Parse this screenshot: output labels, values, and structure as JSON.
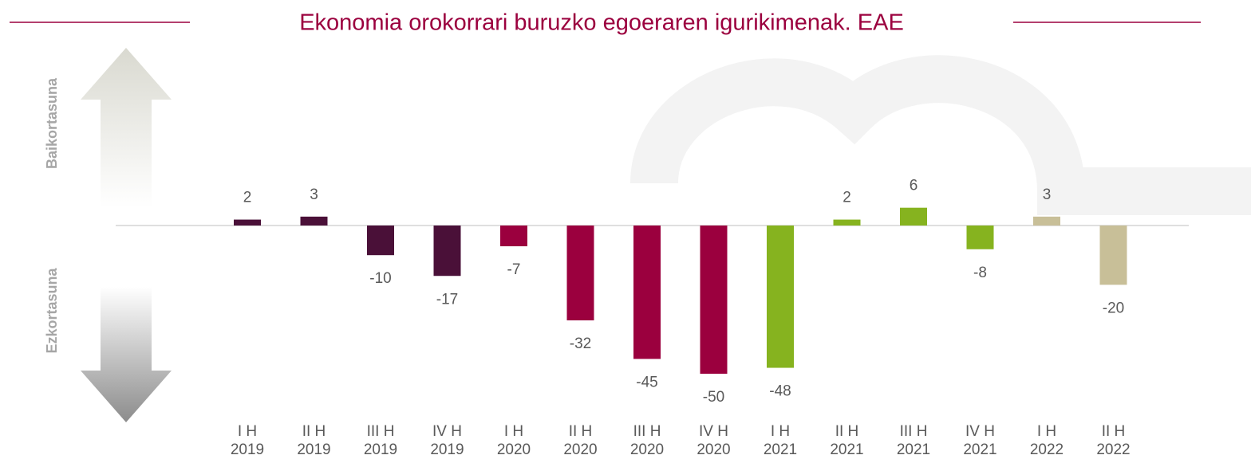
{
  "chart_data": {
    "type": "bar",
    "title": "Ekonomia orokorrari buruzko egoeraren igurikimenak. EAE",
    "annotations": [
      "Baikortasuna",
      "Ezkortasuna"
    ],
    "categories": [
      [
        "I H",
        "2019"
      ],
      [
        "II H",
        "2019"
      ],
      [
        "III H",
        "2019"
      ],
      [
        "IV H",
        "2019"
      ],
      [
        "I H",
        "2020"
      ],
      [
        "II H",
        "2020"
      ],
      [
        "III H",
        "2020"
      ],
      [
        "IV H",
        "2020"
      ],
      [
        "I H",
        "2021"
      ],
      [
        "II H",
        "2021"
      ],
      [
        "III H",
        "2021"
      ],
      [
        "IV H",
        "2021"
      ],
      [
        "I H",
        "2022"
      ],
      [
        "II H",
        "2022"
      ]
    ],
    "values": [
      2,
      3,
      -10,
      -17,
      -7,
      -32,
      -45,
      -50,
      -48,
      2,
      6,
      -8,
      3,
      -20
    ],
    "colors": [
      "#4a1038",
      "#4a1038",
      "#4a1038",
      "#4a1038",
      "#9b003e",
      "#9b003e",
      "#9b003e",
      "#9b003e",
      "#86b31f",
      "#86b31f",
      "#86b31f",
      "#86b31f",
      "#c8bf98",
      "#c8bf98"
    ],
    "ylim": [
      -55,
      20
    ]
  }
}
